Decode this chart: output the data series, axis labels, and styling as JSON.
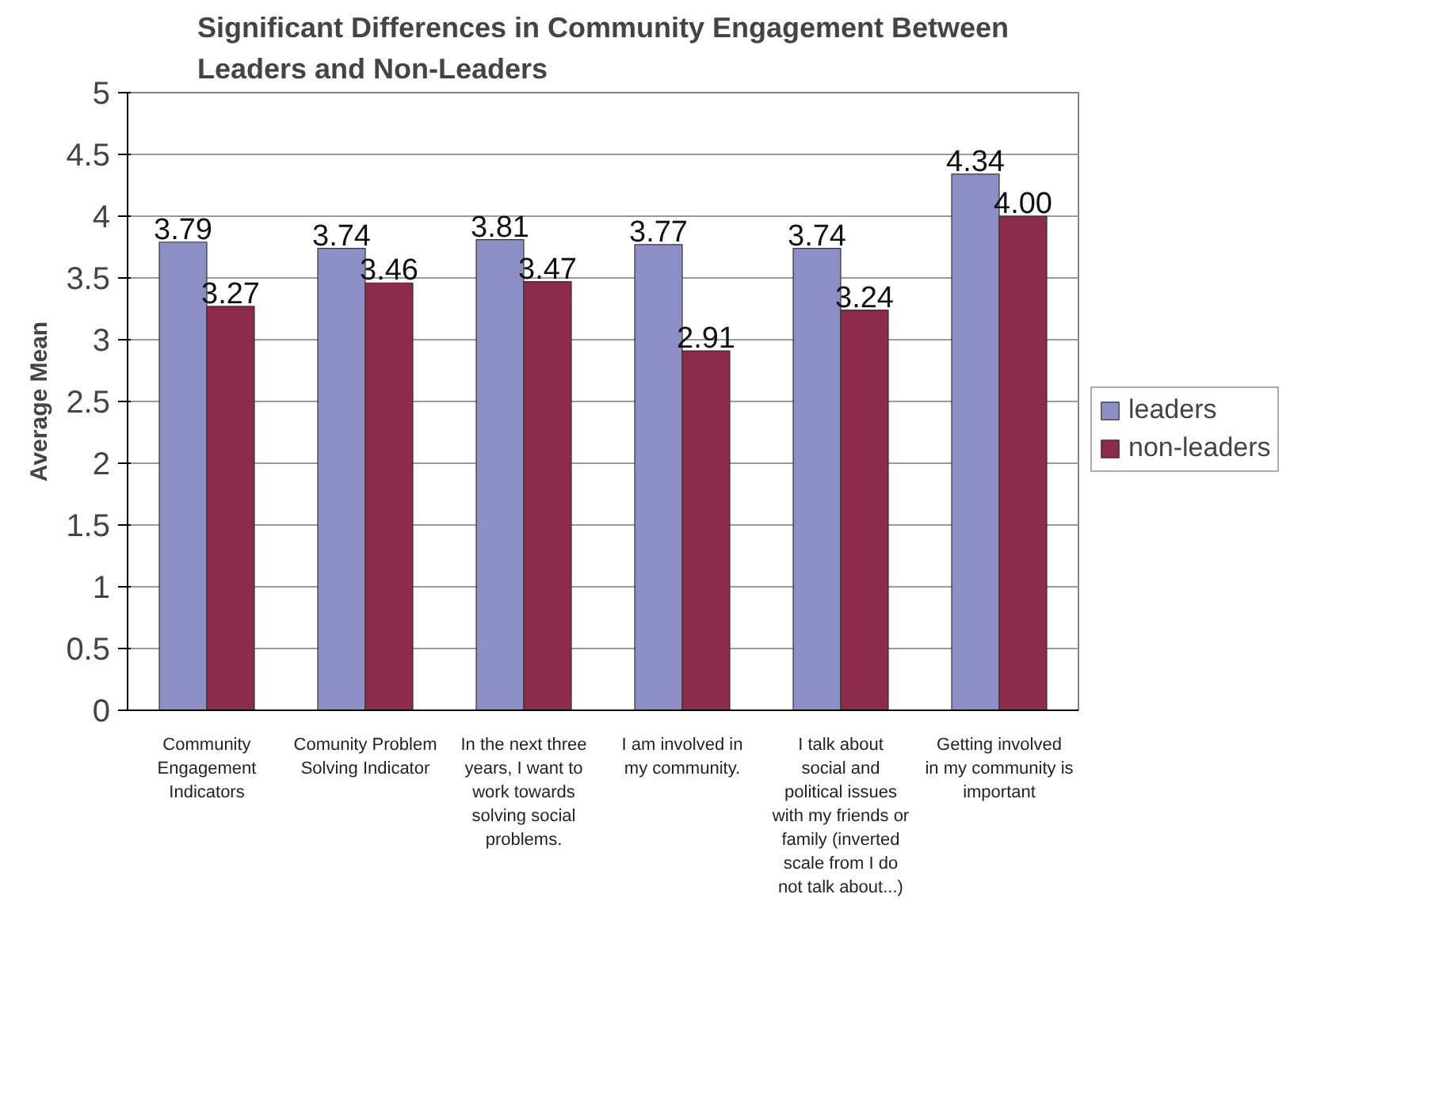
{
  "chart_data": {
    "type": "bar",
    "title": "Significant Differences in Community Engagement Between Leaders and Non-Leaders",
    "ylabel": "Average Mean",
    "categories": [
      "Community Engagement Indicators",
      "Comunity Problem Solving Indicator",
      "In the next three years, I want to work towards solving social problems.",
      "I am involved in my community.",
      "I talk about social and political issues with my friends or family (inverted scale from I do not talk about...)",
      "Getting involved in my community is important"
    ],
    "series": [
      {
        "name": "leaders",
        "color": "#8e8ec6",
        "values": [
          3.79,
          3.74,
          3.81,
          3.77,
          3.74,
          4.34
        ],
        "value_labels": [
          "3.79",
          "3.74",
          "3.81",
          "3.77",
          "3.74",
          "4.34"
        ]
      },
      {
        "name": "non-leaders",
        "color": "#8c2a4c",
        "values": [
          3.27,
          3.46,
          3.47,
          2.91,
          3.24,
          4.0
        ],
        "value_labels": [
          "3.27",
          "3.46",
          "3.47",
          "2.91",
          "3.24",
          "4.00"
        ]
      }
    ],
    "ylim": [
      0,
      5
    ],
    "yticks": [
      0,
      0.5,
      1,
      1.5,
      2,
      2.5,
      3,
      3.5,
      4,
      4.5,
      5
    ],
    "grid": "y",
    "legend": "right"
  }
}
